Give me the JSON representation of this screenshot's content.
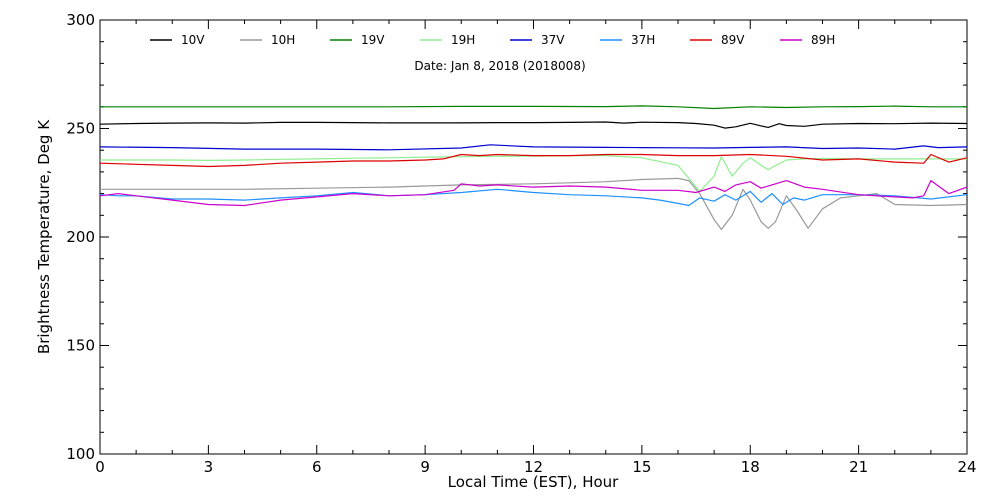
{
  "chart_data": {
    "type": "line",
    "title": "",
    "annotation": "Date: Jan  8, 2018 (2018008)",
    "xlabel": "Local Time (EST), Hour",
    "ylabel": "Brightness Temperature, Deg K",
    "xlim": [
      0,
      24
    ],
    "ylim": [
      100,
      300
    ],
    "xticks": [
      0,
      3,
      6,
      9,
      12,
      15,
      18,
      21,
      24
    ],
    "yticks": [
      100,
      150,
      200,
      250,
      300
    ],
    "grid": false,
    "legend_position": "top",
    "series": [
      {
        "name": "10V",
        "color": "#000000",
        "x": [
          0,
          1,
          2,
          3,
          4,
          5,
          6,
          7,
          8,
          9,
          10,
          11,
          12,
          13,
          14,
          14.5,
          15,
          16,
          16.5,
          17,
          17.3,
          17.6,
          18,
          18.3,
          18.5,
          18.8,
          19,
          19.5,
          20,
          21,
          22,
          23,
          24
        ],
        "y": [
          252,
          252.3,
          252.5,
          252.6,
          252.5,
          252.8,
          252.8,
          252.7,
          252.6,
          252.6,
          252.6,
          252.7,
          252.7,
          252.8,
          253,
          252.5,
          252.9,
          252.7,
          252.3,
          251.5,
          250.2,
          250.8,
          252.4,
          251.2,
          250.5,
          252.2,
          251.4,
          251,
          252,
          252.3,
          252.2,
          252.5,
          252.3
        ]
      },
      {
        "name": "10H",
        "color": "#999999",
        "x": [
          0,
          2,
          4,
          6,
          8,
          10,
          12,
          13,
          14,
          15,
          16,
          16.3,
          16.6,
          17,
          17.2,
          17.5,
          17.8,
          18,
          18.3,
          18.5,
          18.7,
          19,
          19.3,
          19.6,
          20,
          20.5,
          21,
          21.5,
          22,
          23,
          24
        ],
        "y": [
          222,
          222,
          222,
          222.5,
          223,
          224,
          224.5,
          225,
          225.5,
          226.5,
          227,
          226,
          220,
          208,
          203.5,
          210,
          222,
          217,
          207,
          204,
          207,
          219,
          212,
          204,
          213,
          218,
          219,
          220,
          215,
          214.5,
          215
        ]
      },
      {
        "name": "19V",
        "color": "#008000",
        "x": [
          0,
          2,
          4,
          6,
          8,
          10,
          12,
          14,
          15,
          16,
          17,
          18,
          19,
          20,
          21,
          22,
          23,
          24
        ],
        "y": [
          260,
          260,
          260,
          260,
          260,
          260.2,
          260.2,
          260.1,
          260.4,
          260,
          259.2,
          260,
          259.7,
          260,
          260.1,
          260.3,
          260,
          260
        ]
      },
      {
        "name": "19H",
        "color": "#90ee90",
        "x": [
          0,
          1,
          2,
          3,
          4,
          5,
          6,
          7,
          8,
          9,
          10,
          11,
          12,
          13,
          14,
          15,
          16,
          16.3,
          16.6,
          17,
          17.2,
          17.5,
          17.8,
          18,
          18.3,
          18.5,
          18.7,
          19,
          19.5,
          20,
          21,
          22,
          23,
          24
        ],
        "y": [
          235.5,
          235.5,
          235.5,
          235.3,
          235.5,
          235.8,
          236,
          236.3,
          236.5,
          236.8,
          237,
          237.2,
          237.3,
          237.5,
          237.5,
          236.5,
          233,
          227,
          221,
          228,
          237,
          228,
          234,
          236.5,
          233,
          231,
          233,
          235.5,
          236,
          236.2,
          236,
          236,
          236,
          236
        ]
      },
      {
        "name": "37V",
        "color": "#0000cd",
        "x": [
          0,
          2,
          4,
          6,
          8,
          10,
          10.8,
          12,
          14,
          15,
          16,
          17,
          18,
          19,
          20,
          21,
          22,
          22.8,
          23.2,
          24
        ],
        "y": [
          241.5,
          241.2,
          240.5,
          240.5,
          240.2,
          241,
          242.5,
          241.5,
          241.3,
          241.2,
          241.1,
          241,
          241.3,
          241.5,
          240.8,
          241,
          240.5,
          242,
          241.2,
          241.5
        ]
      },
      {
        "name": "37H",
        "color": "#1e90ff",
        "x": [
          0,
          0.5,
          1,
          2,
          3,
          4,
          5,
          6,
          7,
          8,
          9,
          10,
          11,
          12,
          13,
          14,
          15,
          15.5,
          16,
          16.3,
          16.6,
          17,
          17.3,
          17.6,
          18,
          18.3,
          18.6,
          18.9,
          19.2,
          19.5,
          20,
          21,
          22,
          23,
          24
        ],
        "y": [
          219.5,
          219,
          219,
          217.5,
          217.5,
          217,
          218,
          219,
          220.5,
          219,
          219.5,
          220.5,
          222,
          220.5,
          219.5,
          219,
          218,
          217,
          215.5,
          214.5,
          218,
          216.5,
          219.5,
          217,
          221,
          216,
          220,
          215,
          218,
          217,
          219.5,
          219.5,
          219,
          217.5,
          219.5
        ]
      },
      {
        "name": "89V",
        "color": "#dd0000",
        "x": [
          0,
          1,
          2,
          3,
          4,
          5,
          6,
          7,
          8,
          9,
          9.5,
          10,
          10.5,
          11,
          12,
          13,
          14,
          15,
          16,
          17,
          18,
          19,
          20,
          21,
          22,
          22.8,
          23,
          23.5,
          24
        ],
        "y": [
          234,
          233.5,
          233,
          232.5,
          233,
          234,
          234.5,
          235,
          235,
          235.5,
          236,
          238,
          237.5,
          238,
          237.5,
          237.5,
          238,
          238,
          237.5,
          237.5,
          238,
          237.2,
          235.5,
          236,
          234.5,
          234,
          238,
          234.5,
          236.5
        ]
      },
      {
        "name": "89H",
        "color": "#cc00cc",
        "x": [
          0,
          0.5,
          1,
          2,
          3,
          4,
          5,
          6,
          7,
          8,
          9,
          9.8,
          10,
          10.5,
          11,
          12,
          13,
          14,
          15,
          16,
          16.5,
          17,
          17.3,
          17.6,
          18,
          18.3,
          18.6,
          19,
          19.5,
          20,
          21,
          22,
          22.5,
          22.8,
          23,
          23.5,
          24
        ],
        "y": [
          219,
          220,
          219,
          217,
          215,
          214.5,
          217,
          218.5,
          220,
          219,
          219.5,
          221.5,
          224.5,
          223.5,
          224,
          223,
          223.5,
          223,
          221.5,
          221.5,
          220.5,
          223,
          221,
          224,
          225.5,
          222.5,
          224,
          226,
          223,
          222,
          219.5,
          218.5,
          218,
          219,
          226,
          220,
          223
        ]
      }
    ]
  }
}
